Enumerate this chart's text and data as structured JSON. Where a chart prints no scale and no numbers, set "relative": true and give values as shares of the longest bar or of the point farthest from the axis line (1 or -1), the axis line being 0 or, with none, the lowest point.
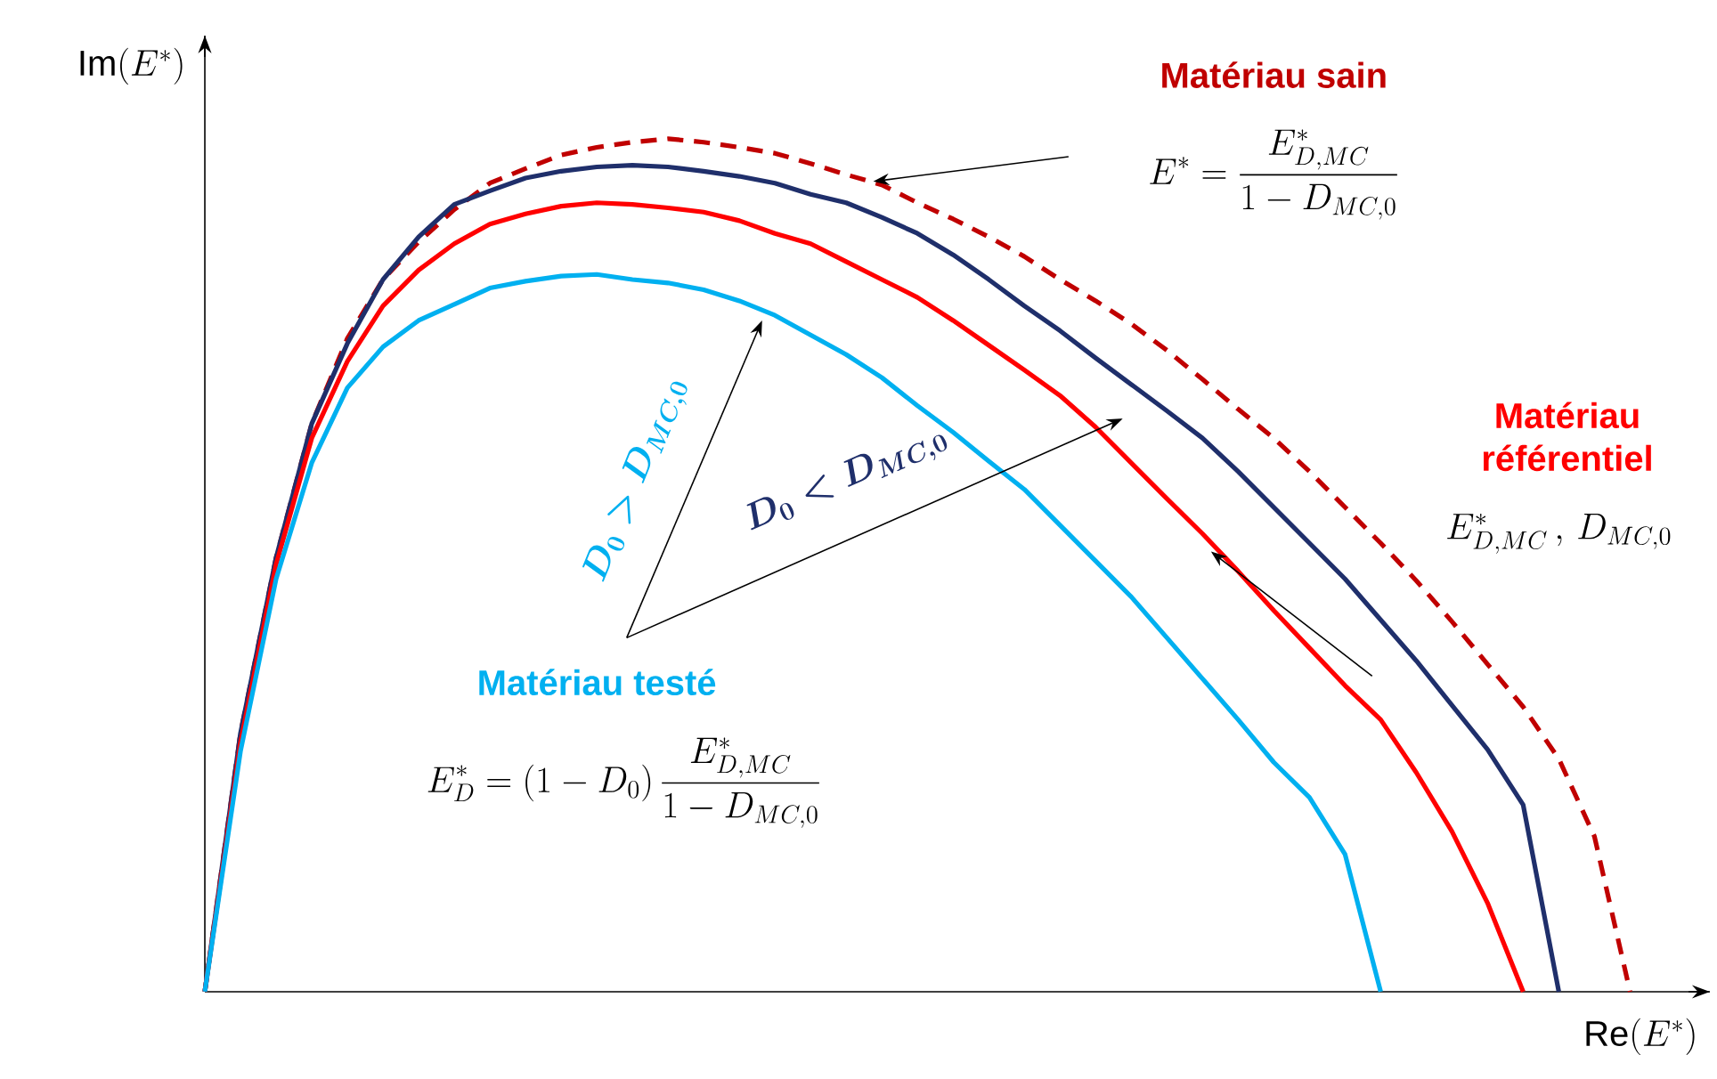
{
  "chart_data": {
    "type": "line",
    "relative": true,
    "xlabel": "\\mathrm{Re}(E^*)",
    "ylabel": "\\mathrm{Im}(E^*)",
    "categories": [
      null,
      null,
      null,
      null,
      null,
      null,
      null,
      null,
      null,
      null,
      null,
      null,
      null,
      null,
      null,
      null,
      null,
      null,
      null,
      null,
      null,
      null,
      null,
      null,
      null,
      null,
      null,
      null,
      null,
      null,
      null,
      null,
      null,
      null,
      null,
      null,
      null,
      null,
      null,
      null,
      null
    ],
    "series": [
      {
        "name": "Matériau sain",
        "color": "#c00000",
        "line_style": "dashed",
        "values": [
          0,
          0.303,
          0.509,
          0.666,
          0.766,
          0.835,
          0.879,
          0.917,
          0.948,
          0.965,
          0.981,
          0.99,
          0.996,
          1.0,
          0.996,
          0.99,
          0.983,
          0.971,
          0.958,
          0.946,
          0.925,
          0.906,
          0.885,
          0.862,
          0.835,
          0.81,
          0.783,
          0.752,
          0.718,
          0.683,
          0.649,
          0.61,
          0.568,
          0.526,
          0.482,
          0.434,
          0.384,
          0.334,
          0.273,
          0.182,
          0
        ]
      },
      {
        "color": "#1f2f6b",
        "values": [
          0,
          0.303,
          0.509,
          0.666,
          0.76,
          0.835,
          0.885,
          0.923,
          0.939,
          0.954,
          0.962,
          0.967,
          0.969,
          0.967,
          0.962,
          0.956,
          0.948,
          0.935,
          0.925,
          0.908,
          0.889,
          0.864,
          0.835,
          0.804,
          0.775,
          0.743,
          0.712,
          0.681,
          0.649,
          0.61,
          0.568,
          0.526,
          0.484,
          0.436,
          0.388,
          0.336,
          0.284,
          0.219,
          0,
          null,
          null
        ]
      },
      {
        "name": "Matériau référentiel",
        "color": "#ff0000",
        "values": [
          0,
          0.292,
          0.501,
          0.649,
          0.739,
          0.804,
          0.846,
          0.877,
          0.9,
          0.912,
          0.921,
          0.925,
          0.923,
          0.919,
          0.914,
          0.904,
          0.889,
          0.877,
          0.856,
          0.835,
          0.814,
          0.787,
          0.758,
          0.729,
          0.699,
          0.662,
          0.62,
          0.578,
          0.537,
          0.493,
          0.447,
          0.403,
          0.359,
          0.319,
          0.257,
          0.188,
          0.104,
          0,
          null,
          null,
          null
        ]
      },
      {
        "name": "Matériau testé",
        "color": "#00b0f0",
        "values": [
          0,
          0.282,
          0.484,
          0.62,
          0.708,
          0.756,
          0.787,
          0.806,
          0.825,
          0.833,
          0.839,
          0.841,
          0.835,
          0.831,
          0.823,
          0.81,
          0.793,
          0.77,
          0.747,
          0.72,
          0.687,
          0.656,
          0.622,
          0.589,
          0.547,
          0.505,
          0.463,
          0.415,
          0.367,
          0.319,
          0.269,
          0.228,
          0.161,
          0,
          null,
          null,
          null,
          null,
          null,
          null,
          null
        ]
      }
    ],
    "annotations": [
      "E^* = \\frac{E^*_{D,MC}}{1 - D_{MC,0}}",
      "E^*_{D,MC}\\,,\\, D_{MC,0}",
      "E^*_D = (1 - D_0)\\,\\frac{E^*_{D,MC}}{1 - D_{MC,0}}",
      "\\boldsymbol{D_0 > D_{MC,0}}",
      "\\boldsymbol{D_0 < D_{MC,0}}"
    ]
  }
}
